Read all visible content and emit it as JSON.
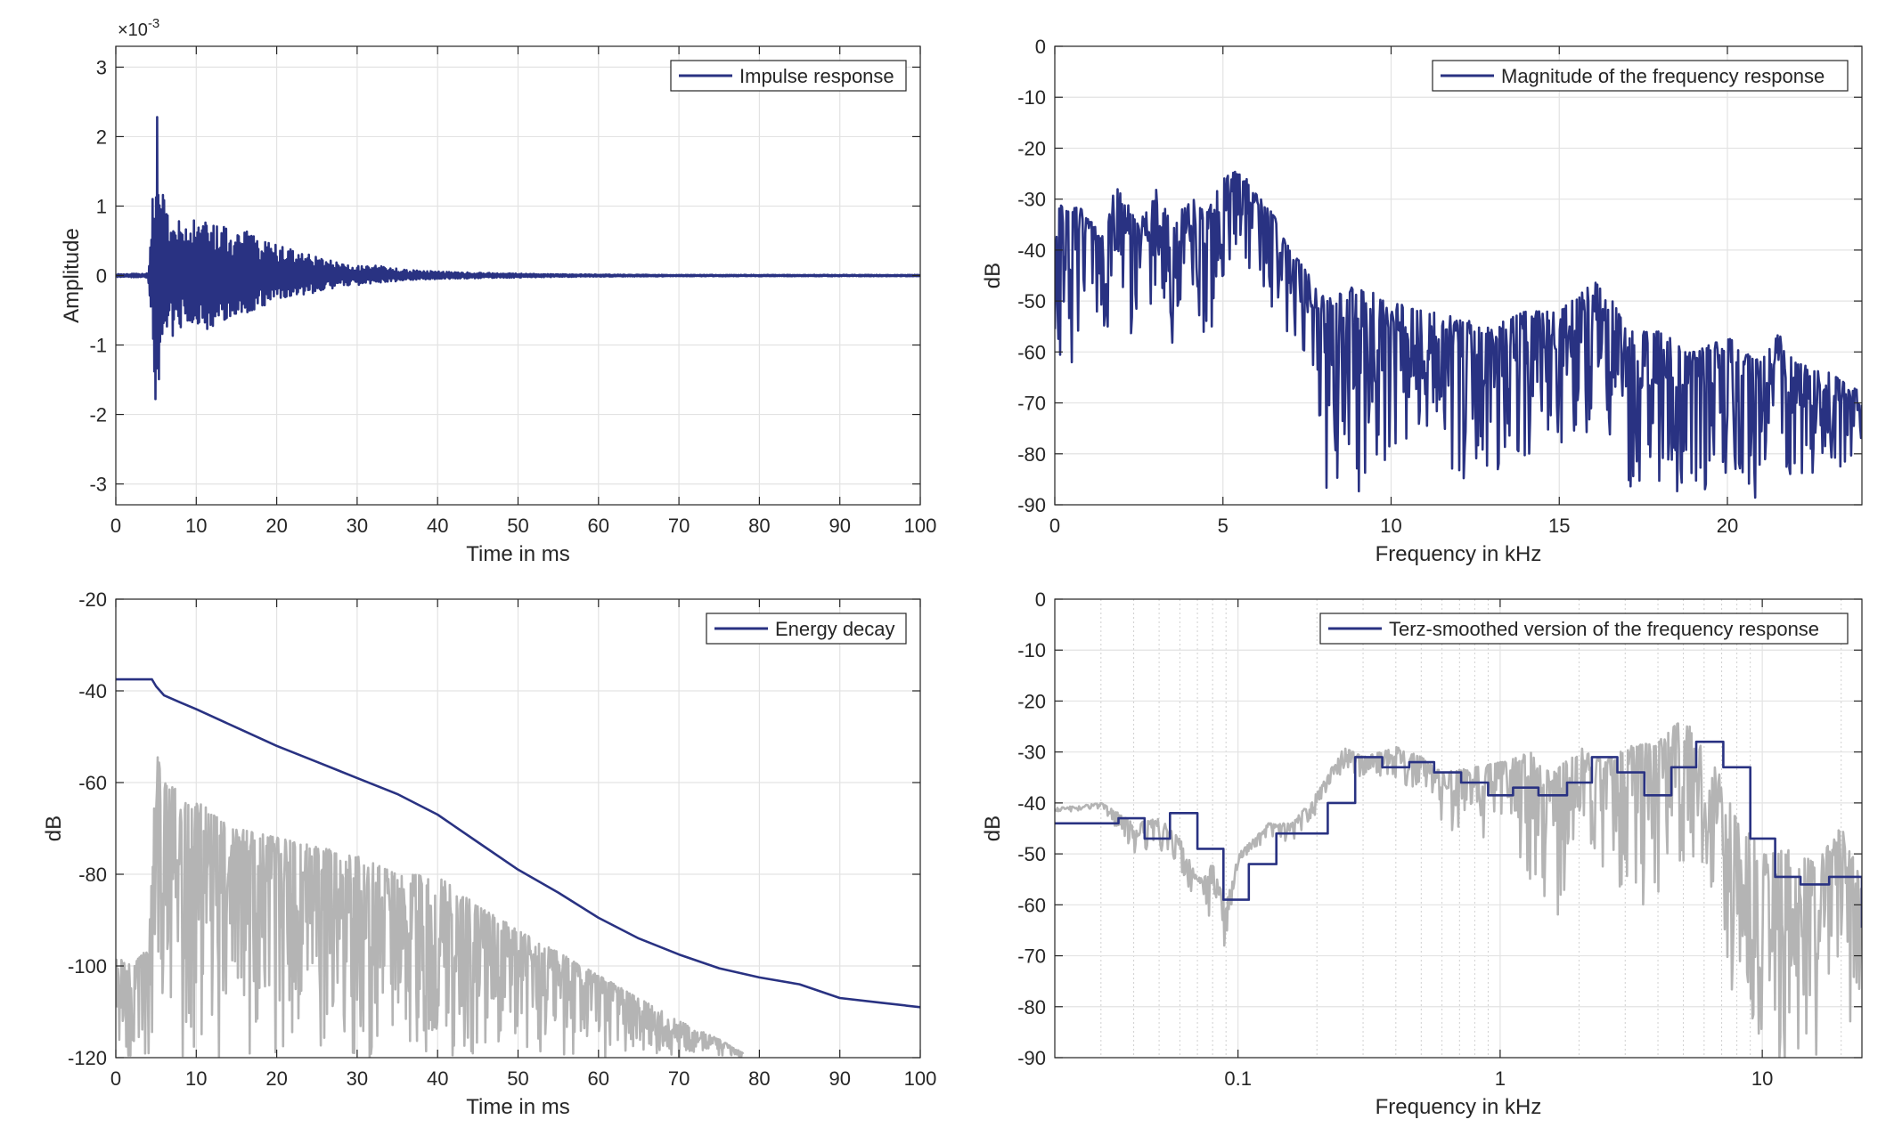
{
  "colors": {
    "primary": "#293282",
    "secondary": "#b4b4b4",
    "axis": "#262626",
    "grid": "#e3e3e3",
    "minor_grid": "#d0d0d0"
  },
  "chart_data": [
    {
      "id": "impulse",
      "type": "line",
      "xlabel": "Time in ms",
      "ylabel": "Amplitude",
      "xlim": [
        0,
        100
      ],
      "ylim": [
        -3.3,
        3.3
      ],
      "xticks": [
        "0",
        "10",
        "20",
        "30",
        "40",
        "50",
        "60",
        "70",
        "80",
        "90",
        "100"
      ],
      "xtick_values": [
        0,
        10,
        20,
        30,
        40,
        50,
        60,
        70,
        80,
        90,
        100
      ],
      "yticks": [
        "3",
        "2",
        "1",
        "0",
        "-1",
        "-2",
        "-3"
      ],
      "ytick_values": [
        3,
        2,
        1,
        0,
        -1,
        -2,
        -3
      ],
      "exponent_label": "×10",
      "exponent_power": "-3",
      "grid": true,
      "legend_position": "top-right",
      "series": [
        {
          "name": "Impulse response",
          "color": "#293282",
          "mode": "envelope",
          "x": [
            0,
            4,
            4.2,
            4.6,
            5.0,
            5.2,
            5.5,
            6,
            7,
            8,
            10,
            12,
            14,
            16,
            18,
            20,
            22,
            25,
            28,
            32,
            36,
            40,
            45,
            50,
            55,
            60,
            70,
            80,
            90,
            100
          ],
          "upper": [
            0.02,
            0.03,
            0.2,
            1.2,
            1.7,
            2.95,
            1.6,
            1.1,
            0.6,
            0.9,
            0.8,
            0.75,
            0.7,
            0.65,
            0.55,
            0.45,
            0.38,
            0.28,
            0.18,
            0.15,
            0.08,
            0.06,
            0.04,
            0.03,
            0.02,
            0.015,
            0.01,
            0.01,
            0.01,
            0.01
          ],
          "lower": [
            -0.02,
            -0.03,
            -0.3,
            -1.0,
            -2.05,
            -1.7,
            -1.5,
            -1.0,
            -0.9,
            -0.8,
            -0.75,
            -0.8,
            -0.6,
            -0.55,
            -0.45,
            -0.4,
            -0.3,
            -0.25,
            -0.15,
            -0.12,
            -0.07,
            -0.05,
            -0.04,
            -0.03,
            -0.02,
            -0.015,
            -0.01,
            -0.01,
            -0.01,
            -0.01
          ]
        }
      ]
    },
    {
      "id": "magnitude",
      "type": "line",
      "xlabel": "Frequency in kHz",
      "ylabel": "dB",
      "xlim": [
        0,
        24
      ],
      "ylim": [
        -90,
        0
      ],
      "xticks": [
        "0",
        "5",
        "10",
        "15",
        "20"
      ],
      "xtick_values": [
        0,
        5,
        10,
        15,
        20
      ],
      "yticks": [
        "0",
        "-10",
        "-20",
        "-30",
        "-40",
        "-50",
        "-60",
        "-70",
        "-80",
        "-90"
      ],
      "ytick_values": [
        0,
        -10,
        -20,
        -30,
        -40,
        -50,
        -60,
        -70,
        -80,
        -90
      ],
      "grid": true,
      "legend_position": "top-right",
      "series": [
        {
          "name": "Magnitude of the frequency response",
          "color": "#293282",
          "mode": "band",
          "x": [
            0,
            0.3,
            0.8,
            1.5,
            1.8,
            2.5,
            3.0,
            3.5,
            4.0,
            4.5,
            5.0,
            5.5,
            6.0,
            6.5,
            7.0,
            7.5,
            8.0,
            9.0,
            10.0,
            11.0,
            12.0,
            13.0,
            14.0,
            15.0,
            16.0,
            16.5,
            17.0,
            18.0,
            19.0,
            20.0,
            21.0,
            21.5,
            22.0,
            23.0,
            24.0
          ],
          "upper": [
            -33,
            -30,
            -32,
            -38,
            -26,
            -35,
            -28,
            -35,
            -29,
            -33,
            -26,
            -24,
            -29,
            -33,
            -40,
            -44,
            -49,
            -47,
            -50,
            -52,
            -53,
            -55,
            -52,
            -52,
            -46,
            -48,
            -56,
            -56,
            -60,
            -57,
            -62,
            -56,
            -62,
            -64,
            -68
          ],
          "lower": [
            -58,
            -70,
            -52,
            -60,
            -45,
            -62,
            -50,
            -66,
            -48,
            -62,
            -45,
            -42,
            -48,
            -52,
            -58,
            -62,
            -88,
            -90,
            -80,
            -80,
            -90,
            -85,
            -82,
            -80,
            -75,
            -80,
            -90,
            -88,
            -88,
            -85,
            -90,
            -75,
            -90,
            -88,
            -78
          ]
        }
      ]
    },
    {
      "id": "decay",
      "type": "line",
      "xlabel": "Time in ms",
      "ylabel": "dB",
      "xlim": [
        0,
        100
      ],
      "ylim": [
        -120,
        -20
      ],
      "xticks": [
        "0",
        "10",
        "20",
        "30",
        "40",
        "50",
        "60",
        "70",
        "80",
        "90",
        "100"
      ],
      "xtick_values": [
        0,
        10,
        20,
        30,
        40,
        50,
        60,
        70,
        80,
        90,
        100
      ],
      "yticks": [
        "-20",
        "-40",
        "-60",
        "-80",
        "-100",
        "-120"
      ],
      "ytick_values": [
        -20,
        -40,
        -60,
        -80,
        -100,
        -120
      ],
      "grid": true,
      "legend_position": "top-right",
      "series": [
        {
          "name": "Energy decay",
          "color": "#293282",
          "mode": "line",
          "x": [
            0,
            4.5,
            5,
            6,
            8,
            10,
            15,
            20,
            25,
            30,
            35,
            40,
            45,
            50,
            55,
            60,
            65,
            70,
            75,
            80,
            85,
            90,
            95,
            100
          ],
          "y": [
            -37.5,
            -37.5,
            -39,
            -41,
            -42.5,
            -44,
            -48,
            -52,
            -55.5,
            -59,
            -62.5,
            -67,
            -73,
            -79,
            -84,
            -89.5,
            -94,
            -97.5,
            -100.5,
            -102.5,
            -104,
            -107,
            -108,
            -109
          ]
        },
        {
          "color": "#b4b4b4",
          "mode": "band",
          "x": [
            0,
            2,
            4,
            4.5,
            5,
            6,
            8,
            10,
            15,
            20,
            25,
            30,
            35,
            40,
            45,
            50,
            55,
            60,
            65,
            70,
            75,
            78
          ],
          "upper": [
            -98,
            -100,
            -96,
            -80,
            -53,
            -60,
            -62,
            -64,
            -70,
            -72,
            -74,
            -76,
            -80,
            -80,
            -87,
            -92,
            -97,
            -102,
            -107,
            -112,
            -116,
            -119
          ],
          "lower": [
            -120,
            -120,
            -120,
            -120,
            -100,
            -110,
            -120,
            -120,
            -120,
            -120,
            -120,
            -120,
            -120,
            -120,
            -120,
            -120,
            -120,
            -120,
            -120,
            -120,
            -120,
            -120
          ]
        }
      ]
    },
    {
      "id": "terz",
      "type": "line",
      "xscale": "log",
      "xlabel": "Frequency in kHz",
      "ylabel": "dB",
      "xlim": [
        0.02,
        24
      ],
      "ylim": [
        -90,
        0
      ],
      "xticks": [
        "0.1",
        "1",
        "10"
      ],
      "xtick_values": [
        0.1,
        1,
        10
      ],
      "yticks": [
        "0",
        "-10",
        "-20",
        "-30",
        "-40",
        "-50",
        "-60",
        "-70",
        "-80",
        "-90"
      ],
      "ytick_values": [
        0,
        -10,
        -20,
        -30,
        -40,
        -50,
        -60,
        -70,
        -80,
        -90
      ],
      "grid": true,
      "minor_grid": true,
      "legend_position": "top-right",
      "series": [
        {
          "name": "Terz-smoothed version of the frequency response",
          "color": "#293282",
          "mode": "step",
          "edges": [
            0.02,
            0.035,
            0.044,
            0.055,
            0.07,
            0.088,
            0.11,
            0.14,
            0.18,
            0.22,
            0.28,
            0.355,
            0.45,
            0.56,
            0.71,
            0.9,
            1.12,
            1.4,
            1.8,
            2.24,
            2.8,
            3.55,
            4.5,
            5.6,
            7.1,
            9.0,
            11.2,
            14.0,
            18.0,
            24.0
          ],
          "values": [
            -44,
            -43,
            -47,
            -42,
            -49,
            -59,
            -52,
            -46,
            -46,
            -40,
            -31,
            -33,
            -32,
            -34,
            -36,
            -38.5,
            -37,
            -38.5,
            -36,
            -31,
            -34,
            -38.5,
            -33,
            -28,
            -33,
            -47,
            -54.5,
            -56,
            -54.5,
            -64.5
          ]
        },
        {
          "color": "#b4b4b4",
          "mode": "band",
          "x": [
            0.02,
            0.03,
            0.04,
            0.05,
            0.06,
            0.07,
            0.08,
            0.09,
            0.1,
            0.13,
            0.16,
            0.2,
            0.25,
            0.3,
            0.4,
            0.5,
            0.6,
            0.8,
            1.0,
            1.3,
            1.6,
            2.0,
            2.5,
            3.0,
            4.0,
            5.0,
            6.0,
            7.0,
            8.0,
            10.0,
            13.0,
            16.0,
            20.0,
            24.0
          ],
          "upper": [
            -41,
            -40,
            -44,
            -43,
            -47,
            -55,
            -52,
            -60,
            -50,
            -44,
            -44,
            -38,
            -29,
            -31,
            -29,
            -31,
            -34,
            -33,
            -32,
            -30,
            -34,
            -29,
            -32,
            -29,
            -28,
            -23,
            -30,
            -35,
            -42,
            -50,
            -49,
            -52,
            -44,
            -56
          ],
          "lower": [
            -42,
            -41,
            -50,
            -49,
            -53,
            -61,
            -67,
            -70,
            -52,
            -47,
            -48,
            -42,
            -34,
            -35,
            -35,
            -40,
            -45,
            -48,
            -45,
            -55,
            -65,
            -45,
            -55,
            -60,
            -60,
            -55,
            -58,
            -62,
            -85,
            -90,
            -90,
            -90,
            -90,
            -78
          ]
        }
      ]
    }
  ]
}
